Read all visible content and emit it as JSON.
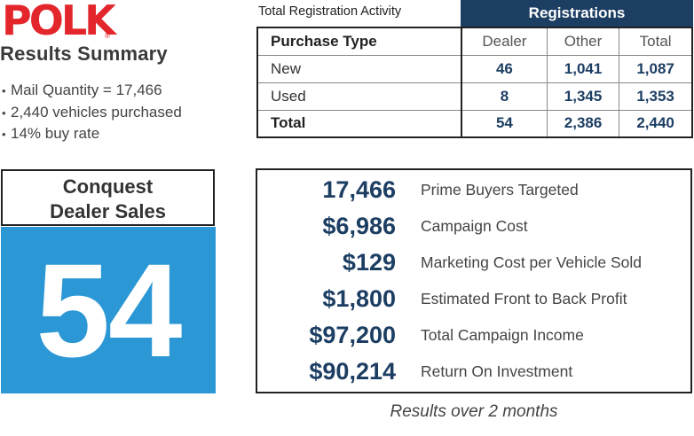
{
  "brand": {
    "logo_text": "POLK",
    "logo_color": "#e3262b",
    "registered_mark": "®"
  },
  "summary": {
    "title": "Results Summary",
    "bullets": [
      "Mail Quantity = 17,466",
      "2,440 vehicles purchased",
      "14% buy rate"
    ]
  },
  "registration_table": {
    "caption": "Total Registration Activity",
    "group_header": "Registrations",
    "columns": [
      "Purchase Type",
      "Dealer",
      "Other",
      "Total"
    ],
    "rows": [
      {
        "type": "New",
        "dealer": "46",
        "other": "1,041",
        "total": "1,087"
      },
      {
        "type": "Used",
        "dealer": "8",
        "other": "1,345",
        "total": "1,353"
      },
      {
        "type": "Total",
        "dealer": "54",
        "other": "2,386",
        "total": "2,440"
      }
    ]
  },
  "conquest": {
    "title_line1": "Conquest",
    "title_line2": "Dealer Sales",
    "value": "54",
    "color": "#2b98d5"
  },
  "metrics": [
    {
      "value": "17,466",
      "label": "Prime Buyers Targeted"
    },
    {
      "value": "$6,986",
      "label": "Campaign Cost"
    },
    {
      "value": "$129",
      "label": "Marketing Cost per Vehicle Sold"
    },
    {
      "value": "$1,800",
      "label": "Estimated Front to Back Profit"
    },
    {
      "value": "$97,200",
      "label": "Total Campaign Income"
    },
    {
      "value": "$90,214",
      "label": "Return On Investment"
    }
  ],
  "footnote": "Results over 2 months",
  "colors": {
    "navy": "#1d3e63",
    "blue": "#2b98d5",
    "red": "#e3262b"
  }
}
